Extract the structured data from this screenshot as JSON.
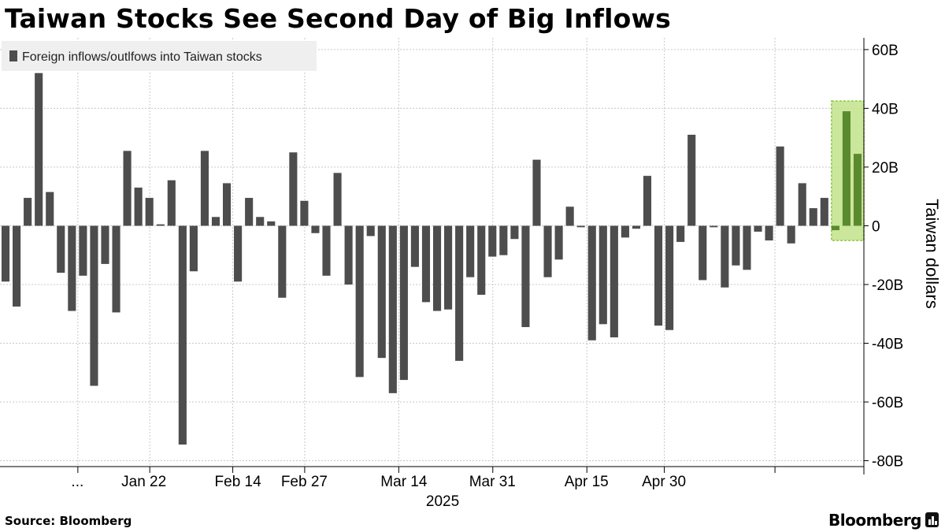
{
  "header": {
    "title": "Taiwan Stocks See Second Day of Big Inflows"
  },
  "footer": {
    "source": "Source: Bloomberg",
    "brand": "Bloomberg"
  },
  "colors": {
    "bar": "#4d4d4d",
    "highlight_fill": "#c2e38b",
    "highlight_stroke": "#8cc63f",
    "highlight_bar": "#5a8a2e",
    "grid": "#c8c8c8",
    "legend_bg": "#efefef"
  },
  "chart_data": {
    "type": "bar",
    "title": "Taiwan Stocks See Second Day of Big Inflows",
    "ylabel": "Taiwan dollars",
    "xlabel": "2025",
    "series": [
      {
        "name": "Foreign inflows/outlfows into Taiwan stocks",
        "values": [
          -19,
          -27.5,
          9.5,
          52,
          11.5,
          -16,
          -29,
          -17,
          -54.5,
          -13,
          -29.5,
          25.5,
          13,
          9.5,
          0.5,
          15.5,
          -74.5,
          -15.5,
          25.5,
          3,
          14.5,
          -19,
          9.5,
          3,
          1.5,
          -24.5,
          25,
          8.5,
          -2.5,
          -17,
          18,
          -20,
          -51.5,
          -3.5,
          -45,
          -57,
          -52.5,
          -14,
          -26,
          -29,
          -28.5,
          -46,
          -17.5,
          -23.5,
          -10.5,
          -10,
          -4.5,
          -34.5,
          22.5,
          -17.5,
          -11.5,
          6.5,
          -0.5,
          -39,
          -33.5,
          -38,
          -4,
          -1,
          17,
          -34,
          -35.5,
          -5.5,
          31,
          -18.5,
          -0.5,
          -21,
          -13.5,
          -15,
          -2,
          -5,
          27,
          -6,
          14.5,
          6,
          9.5,
          -1.5,
          39,
          24.5
        ]
      }
    ],
    "highlight": {
      "from_index": 75,
      "to_index": 77
    },
    "y_ticks": [
      60,
      40,
      20,
      0,
      -20,
      -40,
      -60,
      -80
    ],
    "y_tick_labels": [
      "60B",
      "40B",
      "20B",
      "0",
      "-20B",
      "-40B",
      "-60B",
      "-80B"
    ],
    "ylim": [
      -82,
      64
    ],
    "x_tick_positions": [
      7,
      13.5,
      21,
      27.5,
      36,
      44.5,
      53,
      60,
      70
    ],
    "x_tick_labels": [
      "...",
      "Jan 22",
      "Feb 14",
      "Feb 27",
      "Mar 14",
      "Mar 31",
      "Apr 15",
      "Apr 30"
    ],
    "x_tick_label_positions": [
      7,
      13,
      21.5,
      27.5,
      36.5,
      44.5,
      53,
      60
    ],
    "year_label": "2025",
    "grid": true,
    "legend_position": "top-left"
  }
}
